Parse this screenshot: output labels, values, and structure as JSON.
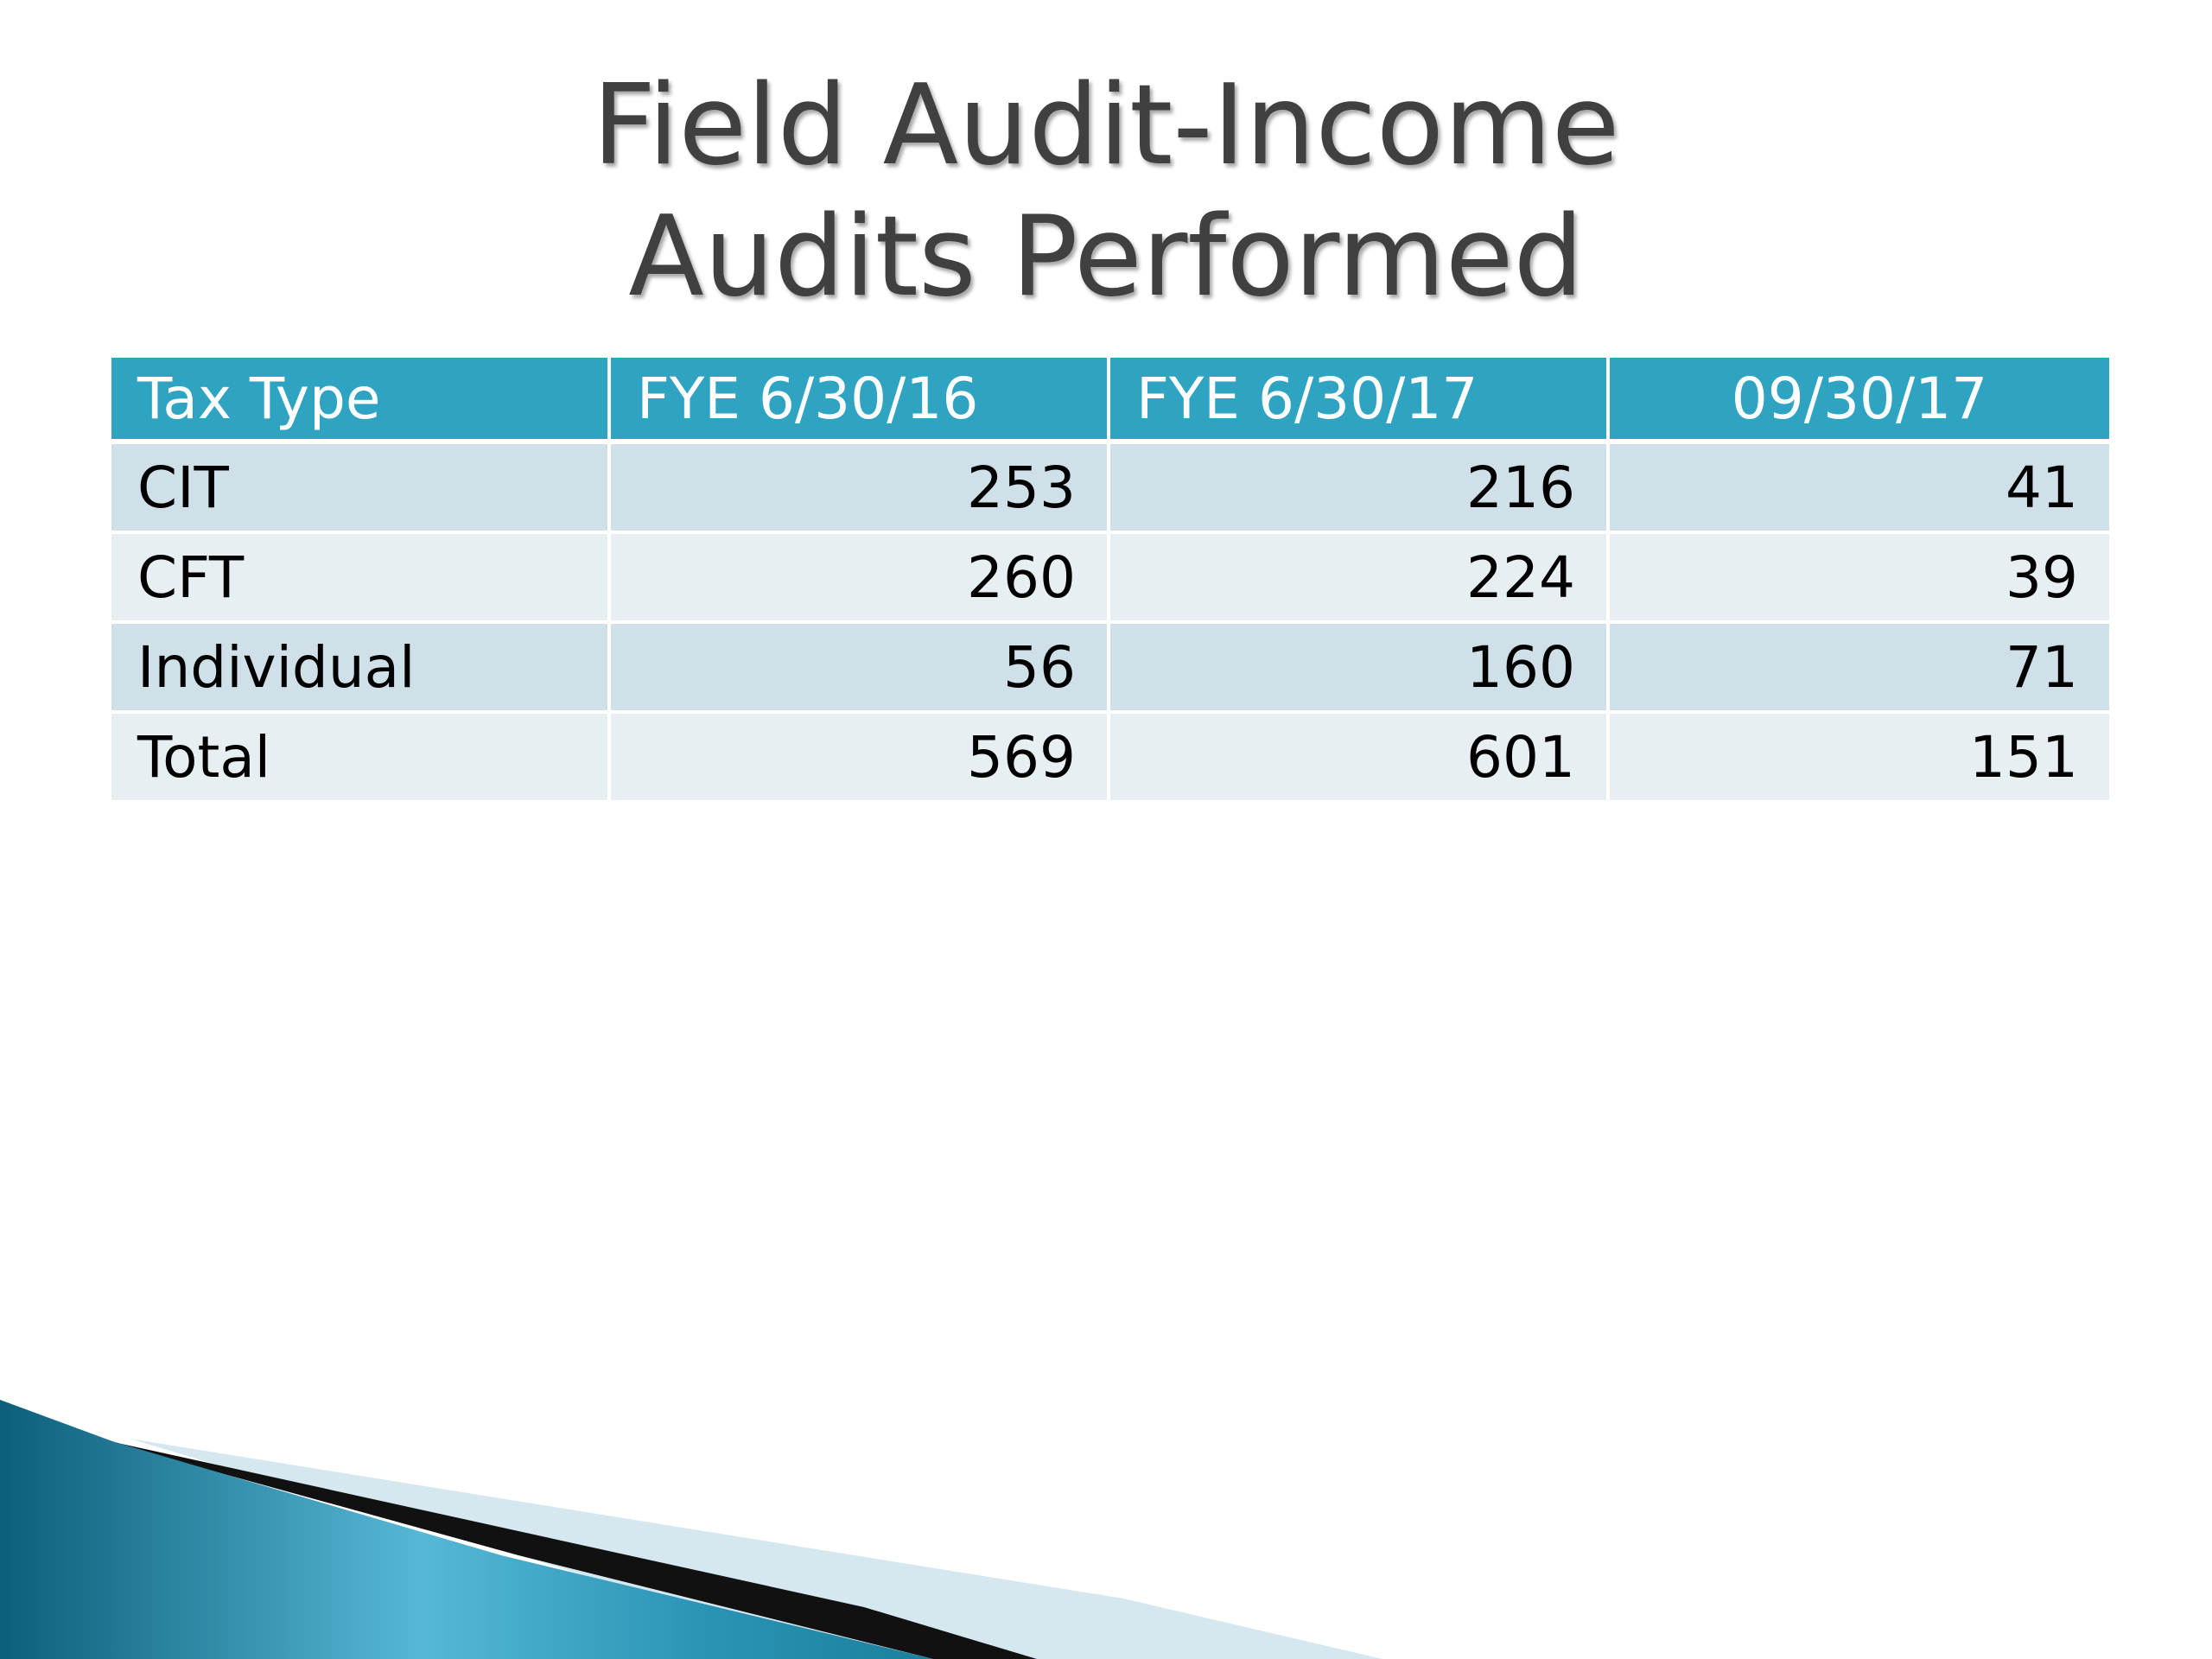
{
  "title": {
    "line1": "Field Audit-Income",
    "line2": "Audits Performed"
  },
  "table": {
    "headers": [
      "Tax Type",
      "FYE 6/30/16",
      "FYE 6/30/17",
      "09/30/17"
    ],
    "rows": [
      [
        "CIT",
        "253",
        "216",
        "41"
      ],
      [
        "CFT",
        "260",
        "224",
        "39"
      ],
      [
        "Individual",
        "56",
        "160",
        "71"
      ],
      [
        "Total",
        "569",
        "601",
        "151"
      ]
    ]
  },
  "colors": {
    "header_bg": "#2ea3c2",
    "row_dark": "#cfe0e8",
    "row_light": "#e7eff3",
    "title_text": "#404040",
    "accent_teal": "#1b7f9c"
  }
}
